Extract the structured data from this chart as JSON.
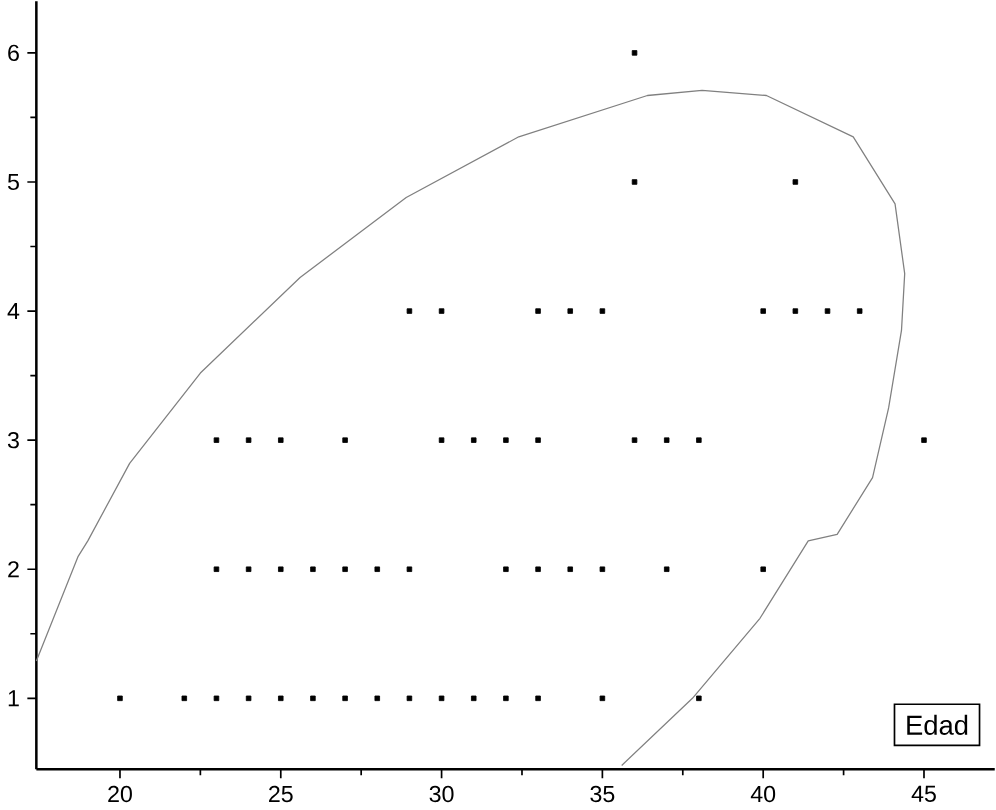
{
  "chart_data": {
    "type": "scatter",
    "xlim": [
      17.4,
      47.2
    ],
    "ylim": [
      0.45,
      6.4
    ],
    "xticks": [
      20,
      25,
      30,
      35,
      40,
      45
    ],
    "yticks": [
      1,
      2,
      3,
      4,
      5,
      6
    ],
    "annotations": [
      "Edad"
    ],
    "series": [
      {
        "color": "#000000",
        "marker": "square",
        "x": [
          20,
          22,
          23,
          24,
          25,
          26,
          27,
          28,
          29,
          30,
          31,
          32,
          33,
          35,
          38,
          23,
          24,
          25,
          26,
          27,
          28,
          29,
          32,
          33,
          34,
          35,
          37,
          40,
          23,
          24,
          25,
          27,
          30,
          31,
          32,
          33,
          36,
          37,
          38,
          45,
          29,
          30,
          33,
          34,
          35,
          40,
          41,
          42,
          43,
          36,
          41,
          36
        ],
        "values": [
          1,
          1,
          1,
          1,
          1,
          1,
          1,
          1,
          1,
          1,
          1,
          1,
          1,
          1,
          1,
          2,
          2,
          2,
          2,
          2,
          2,
          2,
          2,
          2,
          2,
          2,
          2,
          2,
          3,
          3,
          3,
          3,
          3,
          3,
          3,
          3,
          3,
          3,
          3,
          3,
          4,
          4,
          4,
          4,
          4,
          4,
          4,
          4,
          4,
          5,
          5,
          6
        ]
      },
      {
        "type": "line",
        "color": "#808080",
        "marker": "none",
        "x": [
          17.4,
          18.7,
          19.0,
          20.3,
          22.5,
          25.6,
          28.9,
          32.4,
          36.4,
          38.1,
          40.1,
          42.8,
          44.1,
          44.4,
          44.3,
          43.9,
          43.4,
          42.3,
          41.4,
          39.9,
          37.8,
          35.6
        ],
        "values": [
          1.29,
          2.1,
          2.22,
          2.82,
          3.52,
          4.26,
          4.88,
          5.35,
          5.67,
          5.71,
          5.67,
          5.35,
          4.83,
          4.29,
          3.85,
          3.25,
          2.71,
          2.27,
          2.22,
          1.62,
          1.0,
          0.48
        ]
      }
    ]
  }
}
